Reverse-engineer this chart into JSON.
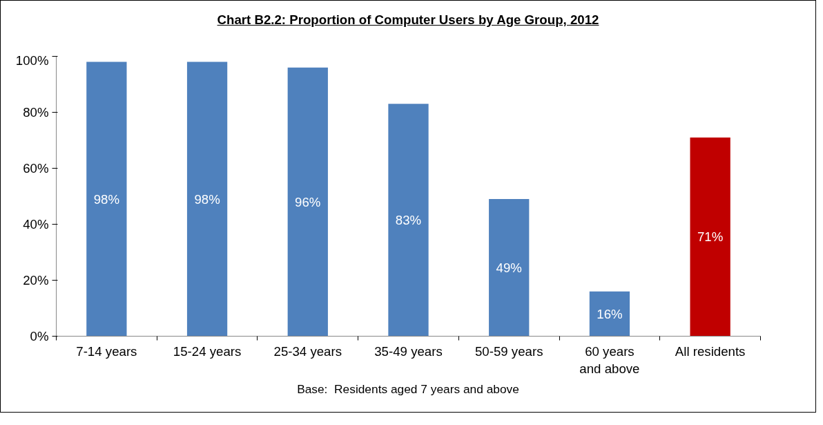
{
  "chart_data": {
    "type": "bar",
    "title": "Chart B2.2: Proportion of Computer Users by Age Group, 2012",
    "categories": [
      "7-14 years",
      "15-24 years",
      "25-34 years",
      "35-49 years",
      "50-59 years",
      "60 years and above",
      "All residents"
    ],
    "values": [
      98,
      98,
      96,
      83,
      49,
      16,
      71
    ],
    "colors": [
      "#4f81bd",
      "#4f81bd",
      "#4f81bd",
      "#4f81bd",
      "#4f81bd",
      "#4f81bd",
      "#c00000"
    ],
    "value_labels": [
      "98%",
      "98%",
      "96%",
      "83%",
      "49%",
      "16%",
      "71%"
    ],
    "ylim": [
      0,
      100
    ],
    "yticks": [
      {
        "value": 0,
        "label": "0%"
      },
      {
        "value": 20,
        "label": "20%"
      },
      {
        "value": 40,
        "label": "40%"
      },
      {
        "value": 60,
        "label": "60%"
      },
      {
        "value": 80,
        "label": "80%"
      },
      {
        "value": 100,
        "label": "100%"
      }
    ],
    "grid": false,
    "annotations": [
      "Base:  Residents aged 7 years and above"
    ]
  }
}
